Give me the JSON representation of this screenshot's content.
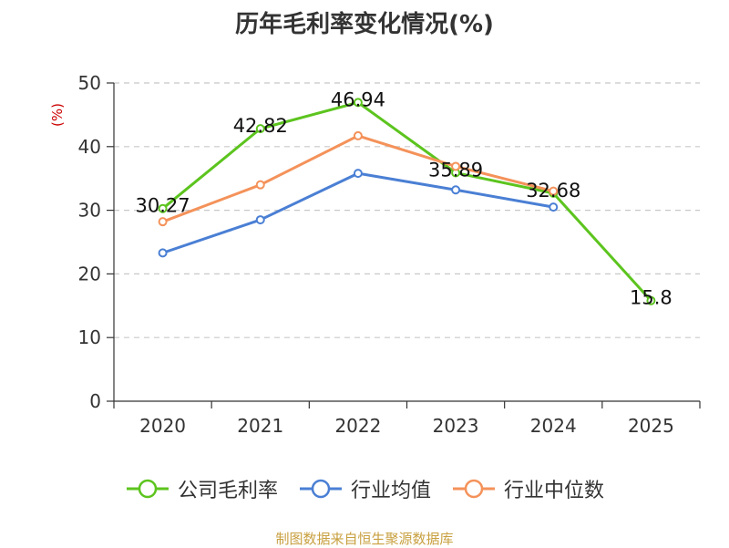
{
  "chart_data": {
    "type": "line",
    "title": "历年毛利率变化情况(%)",
    "ylabel": "(%)",
    "categories": [
      "2020",
      "2021",
      "2022",
      "2023",
      "2024",
      "2025"
    ],
    "ylim": [
      0,
      50
    ],
    "yticks": [
      0,
      10,
      20,
      30,
      40,
      50
    ],
    "grid": true,
    "legend_position": "bottom",
    "series": [
      {
        "name": "公司毛利率",
        "color": "#5cc41e",
        "values": [
          30.27,
          42.82,
          46.94,
          35.89,
          32.68,
          15.8
        ],
        "labels": [
          "30.27",
          "42.82",
          "46.94",
          "35.89",
          "32.68",
          "15.8"
        ]
      },
      {
        "name": "行业均值",
        "color": "#4a7fd4",
        "values": [
          23.3,
          28.5,
          35.8,
          33.2,
          30.5,
          null
        ]
      },
      {
        "name": "行业中位数",
        "color": "#f4925a",
        "values": [
          28.2,
          34.0,
          41.7,
          36.9,
          33.0,
          null
        ]
      }
    ]
  },
  "footer": {
    "source": "制图数据来自恒生聚源数据库"
  }
}
